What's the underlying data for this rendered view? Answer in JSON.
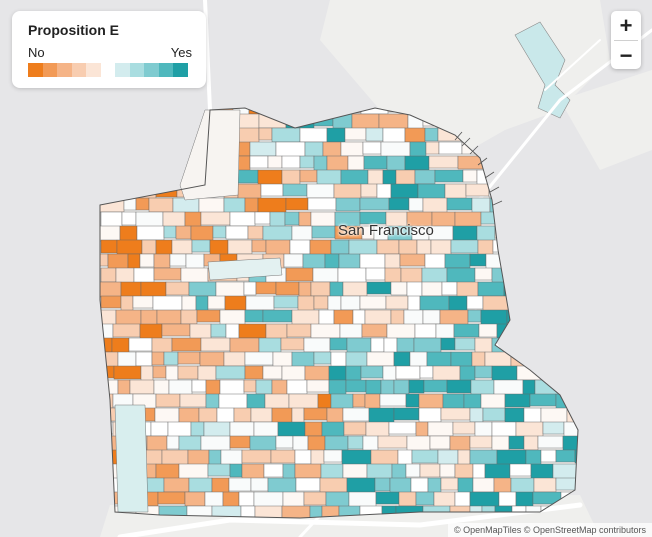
{
  "legend": {
    "title": "Proposition E",
    "no_label": "No",
    "yes_label": "Yes",
    "no_colors": [
      "#ee7d1c",
      "#f29a56",
      "#f5b487",
      "#f8cdb0",
      "#fbe5d6"
    ],
    "yes_colors": [
      "#d3ecee",
      "#a9dde0",
      "#7fcbd0",
      "#4fb8bd",
      "#1f9fa5"
    ]
  },
  "map": {
    "place_label": "San Francisco",
    "zoom_in_label": "+",
    "zoom_out_label": "−",
    "attribution": "© OpenMapTiles © OpenStreetMap contributors",
    "colors": {
      "water": "#e6e6e8",
      "land": "#f3f3f1",
      "road": "#ffffff",
      "boundary": "#555555"
    }
  }
}
